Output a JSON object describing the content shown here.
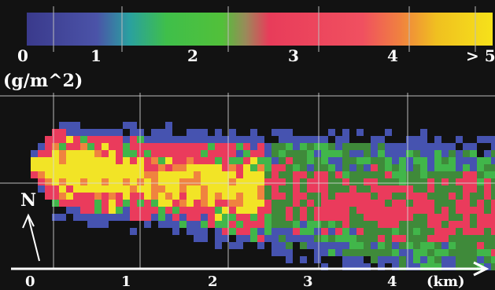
{
  "colorbar": {
    "tick_labels": [
      "0",
      "1",
      "2",
      "3",
      "4",
      "> 5"
    ],
    "unit_label": "(g/m^2)",
    "colors": [
      "#3a3a8c",
      "#4b53a8",
      "#2aa0a0",
      "#3fbf4a",
      "#52c03a",
      "#e83c5a",
      "#f05060",
      "#f08040",
      "#f0c020",
      "#f6e21a"
    ]
  },
  "x_axis": {
    "tick_labels": [
      "0",
      "1",
      "2",
      "3",
      "4"
    ],
    "unit_label": "(km)"
  },
  "north_label": "N",
  "palette": {
    "background": "#121212",
    "grid": "#d9d9d9",
    "blue": "#4653b0",
    "green_dark": "#3f8a3a",
    "green": "#41b64a",
    "red": "#ea3b5c",
    "orange": "#f0833f",
    "yellow": "#f2e426"
  }
}
